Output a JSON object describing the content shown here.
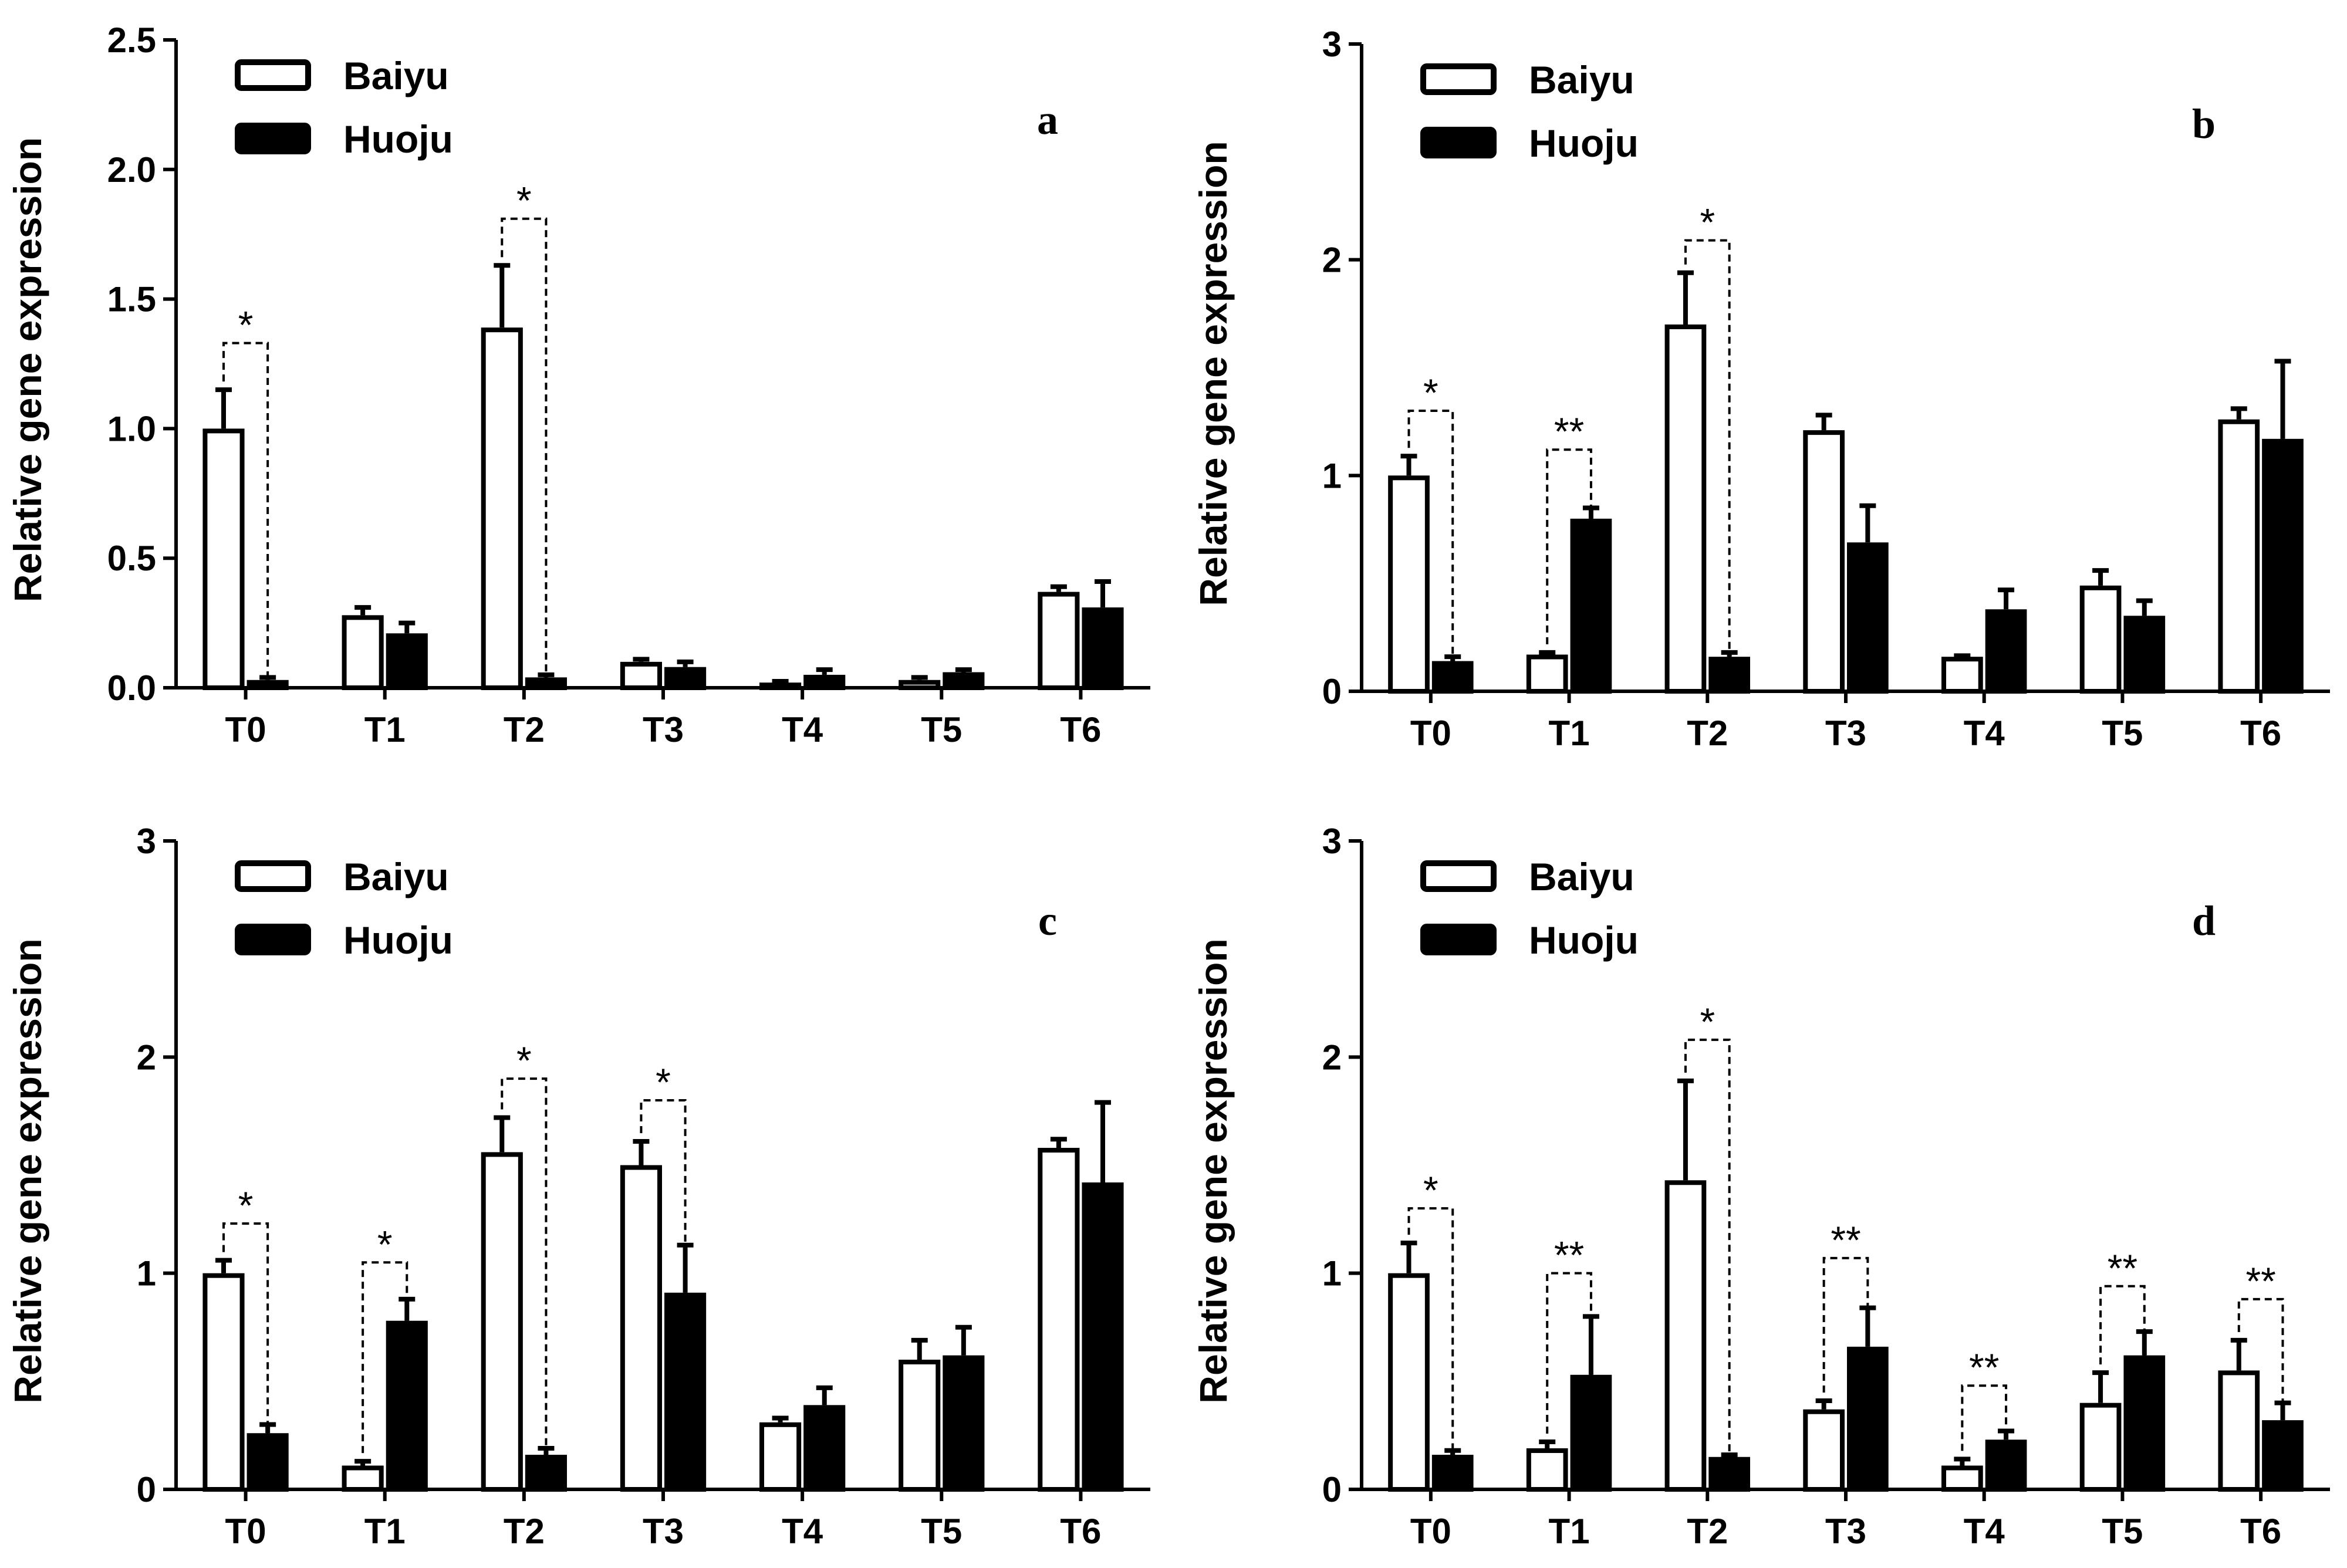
{
  "chart_data": [
    {
      "type": "bar",
      "panel_label": "a",
      "ylabel": "Relative gene expression",
      "categories": [
        "T0",
        "T1",
        "T2",
        "T3",
        "T4",
        "T5",
        "T6"
      ],
      "ylim": [
        0,
        2.5
      ],
      "yticks": [
        0,
        0.5,
        1.0,
        1.5,
        2.0,
        2.5
      ],
      "ytick_labels": [
        "0.0",
        "0.5",
        "1.0",
        "1.5",
        "2.0",
        "2.5"
      ],
      "series": [
        {
          "name": "Baiyu",
          "values": [
            1.0,
            0.28,
            1.39,
            0.1,
            0.02,
            0.03,
            0.37
          ],
          "errors": [
            0.15,
            0.03,
            0.24,
            0.01,
            0.005,
            0.01,
            0.02
          ]
        },
        {
          "name": "Huoju",
          "values": [
            0.03,
            0.21,
            0.04,
            0.08,
            0.05,
            0.06,
            0.31
          ],
          "errors": [
            0.01,
            0.04,
            0.01,
            0.02,
            0.02,
            0.01,
            0.1
          ]
        }
      ],
      "significance": [
        {
          "category": "T0",
          "label": "*",
          "level": 1.33
        },
        {
          "category": "T2",
          "label": "*",
          "level": 1.81
        }
      ]
    },
    {
      "type": "bar",
      "panel_label": "b",
      "ylabel": "Relative gene expression",
      "categories": [
        "T0",
        "T1",
        "T2",
        "T3",
        "T4",
        "T5",
        "T6"
      ],
      "ylim": [
        0,
        3
      ],
      "yticks": [
        0,
        1,
        2,
        3
      ],
      "ytick_labels": [
        "0",
        "1",
        "2",
        "3"
      ],
      "series": [
        {
          "name": "Baiyu",
          "values": [
            1.0,
            0.17,
            1.7,
            1.21,
            0.16,
            0.49,
            1.26
          ],
          "errors": [
            0.09,
            0.01,
            0.24,
            0.07,
            0.005,
            0.07,
            0.05
          ]
        },
        {
          "name": "Huoju",
          "values": [
            0.14,
            0.8,
            0.16,
            0.69,
            0.38,
            0.35,
            1.17
          ],
          "errors": [
            0.02,
            0.05,
            0.02,
            0.17,
            0.09,
            0.07,
            0.36
          ]
        }
      ],
      "significance": [
        {
          "category": "T0",
          "label": "*",
          "level": 1.3
        },
        {
          "category": "T1",
          "label": "**",
          "level": 1.12
        },
        {
          "category": "T2",
          "label": "*",
          "level": 2.09
        }
      ]
    },
    {
      "type": "bar",
      "panel_label": "c",
      "ylabel": "Relative gene expression",
      "categories": [
        "T0",
        "T1",
        "T2",
        "T3",
        "T4",
        "T5",
        "T6"
      ],
      "ylim": [
        0,
        3
      ],
      "yticks": [
        0,
        1,
        2,
        3
      ],
      "ytick_labels": [
        "0",
        "1",
        "2",
        "3"
      ],
      "series": [
        {
          "name": "Baiyu",
          "values": [
            1.0,
            0.11,
            1.56,
            1.5,
            0.31,
            0.6,
            1.58
          ],
          "errors": [
            0.06,
            0.02,
            0.16,
            0.11,
            0.02,
            0.09,
            0.04
          ]
        },
        {
          "name": "Huoju",
          "values": [
            0.26,
            0.78,
            0.16,
            0.91,
            0.39,
            0.62,
            1.42
          ],
          "errors": [
            0.04,
            0.1,
            0.03,
            0.22,
            0.08,
            0.13,
            0.37
          ]
        }
      ],
      "significance": [
        {
          "category": "T0",
          "label": "*",
          "level": 1.23
        },
        {
          "category": "T1",
          "label": "*",
          "level": 1.05
        },
        {
          "category": "T2",
          "label": "*",
          "level": 1.9
        },
        {
          "category": "T3",
          "label": "*",
          "level": 1.8
        }
      ]
    },
    {
      "type": "bar",
      "panel_label": "d",
      "ylabel": "Relative gene expression",
      "categories": [
        "T0",
        "T1",
        "T2",
        "T3",
        "T4",
        "T5",
        "T6"
      ],
      "ylim": [
        0,
        3
      ],
      "yticks": [
        0,
        1,
        2,
        3
      ],
      "ytick_labels": [
        "0",
        "1",
        "2",
        "3"
      ],
      "series": [
        {
          "name": "Baiyu",
          "values": [
            1.0,
            0.19,
            1.43,
            0.37,
            0.11,
            0.4,
            0.55
          ],
          "errors": [
            0.14,
            0.03,
            0.46,
            0.04,
            0.03,
            0.14,
            0.14
          ]
        },
        {
          "name": "Huoju",
          "values": [
            0.16,
            0.53,
            0.15,
            0.66,
            0.23,
            0.62,
            0.32
          ],
          "errors": [
            0.02,
            0.27,
            0.01,
            0.18,
            0.04,
            0.11,
            0.08
          ]
        }
      ],
      "significance": [
        {
          "category": "T0",
          "label": "*",
          "level": 1.3
        },
        {
          "category": "T1",
          "label": "**",
          "level": 1.0
        },
        {
          "category": "T2",
          "label": "*",
          "level": 2.08
        },
        {
          "category": "T3",
          "label": "**",
          "level": 1.07
        },
        {
          "category": "T4",
          "label": "**",
          "level": 0.48
        },
        {
          "category": "T5",
          "label": "**",
          "level": 0.94
        },
        {
          "category": "T6",
          "label": "**",
          "level": 0.88
        }
      ]
    }
  ]
}
